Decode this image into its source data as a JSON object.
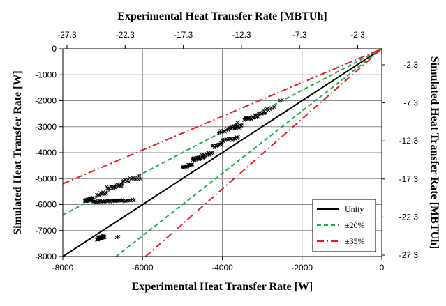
{
  "chart_data": {
    "type": "scatter",
    "title": "",
    "xlabel": "Experimental Heat Transfer Rate [W]",
    "ylabel": "Simulated Heat Transfer Rate [W]",
    "x2label": "Experimental Heat Transfer Rate [MBTUh]",
    "y2label": "Simulated Heat Transfer Rate [MBTUh]",
    "xlim": [
      -8000,
      0
    ],
    "ylim": [
      -8000,
      0
    ],
    "xticks": [
      -8000,
      -6000,
      -4000,
      -2000,
      0
    ],
    "yticks": [
      0,
      -1000,
      -2000,
      -3000,
      -4000,
      -5000,
      -6000,
      -7000,
      -8000
    ],
    "x2ticks": [
      "-27.3",
      "-22.3",
      "-17.3",
      "-12.3",
      "-7.3",
      "-2.3"
    ],
    "y2ticks": [
      "-2.3",
      "-7.3",
      "-12.3",
      "-17.3",
      "-22.3",
      "-27.3"
    ],
    "grid": true,
    "legend_position": "bottom-right",
    "colors": {
      "unity": "#000000",
      "pct20": "#22a84a",
      "pct35": "#e02020",
      "points": "#000000",
      "grid": "#888888"
    },
    "lines": [
      {
        "name": "Unity",
        "slope": 1.0,
        "style": "solid",
        "color_key": "unity"
      },
      {
        "name": "±20%",
        "slopes": [
          0.8,
          1.2
        ],
        "style": "dashed",
        "color_key": "pct20"
      },
      {
        "name": "±35%",
        "slopes": [
          0.65,
          1.35
        ],
        "style": "dashdot",
        "color_key": "pct35"
      }
    ],
    "clusters": [
      {
        "x": [
          -7150,
          -6950
        ],
        "y": [
          -7370,
          -7180
        ],
        "n": 40
      },
      {
        "x": [
          -6650,
          -6600
        ],
        "y": [
          -7280,
          -7200
        ],
        "n": 2
      },
      {
        "x": [
          -7450,
          -7250
        ],
        "y": [
          -5900,
          -5720
        ],
        "n": 35
      },
      {
        "x": [
          -7250,
          -6500
        ],
        "y": [
          -5930,
          -5800
        ],
        "n": 45
      },
      {
        "x": [
          -6500,
          -6200
        ],
        "y": [
          -5900,
          -5780
        ],
        "n": 12
      },
      {
        "x": [
          -7150,
          -6900
        ],
        "y": [
          -5720,
          -5450
        ],
        "n": 12
      },
      {
        "x": [
          -6900,
          -6500
        ],
        "y": [
          -5450,
          -5180
        ],
        "n": 22
      },
      {
        "x": [
          -6500,
          -6050
        ],
        "y": [
          -5180,
          -4880
        ],
        "n": 18
      },
      {
        "x": [
          -5000,
          -4750
        ],
        "y": [
          -4600,
          -4420
        ],
        "n": 22
      },
      {
        "x": [
          -4750,
          -4450
        ],
        "y": [
          -4350,
          -4050
        ],
        "n": 30
      },
      {
        "x": [
          -4450,
          -4250
        ],
        "y": [
          -4200,
          -3920
        ],
        "n": 14
      },
      {
        "x": [
          -4250,
          -4000
        ],
        "y": [
          -3850,
          -3550
        ],
        "n": 16
      },
      {
        "x": [
          -4000,
          -3600
        ],
        "y": [
          -3600,
          -3380
        ],
        "n": 22
      },
      {
        "x": [
          -4100,
          -3850
        ],
        "y": [
          -3300,
          -3050
        ],
        "n": 10
      },
      {
        "x": [
          -3850,
          -3500
        ],
        "y": [
          -3150,
          -2900
        ],
        "n": 22
      },
      {
        "x": [
          -3450,
          -3100
        ],
        "y": [
          -2800,
          -2500
        ],
        "n": 26
      },
      {
        "x": [
          -3100,
          -2900
        ],
        "y": [
          -2550,
          -2400
        ],
        "n": 10
      },
      {
        "x": [
          -2950,
          -2700
        ],
        "y": [
          -2450,
          -2200
        ],
        "n": 8
      },
      {
        "x": [
          -3700,
          -3650
        ],
        "y": [
          -2980,
          -2900
        ],
        "n": 2
      },
      {
        "x": [
          -2550,
          -2500
        ],
        "y": [
          -2000,
          -1960
        ],
        "n": 2
      },
      {
        "x": [
          -3650,
          -3600
        ],
        "y": [
          -2850,
          -2820
        ],
        "n": 1
      }
    ]
  },
  "legend": {
    "items": [
      {
        "label": "Unity"
      },
      {
        "label": "±20%"
      },
      {
        "label": "±35%"
      }
    ]
  }
}
